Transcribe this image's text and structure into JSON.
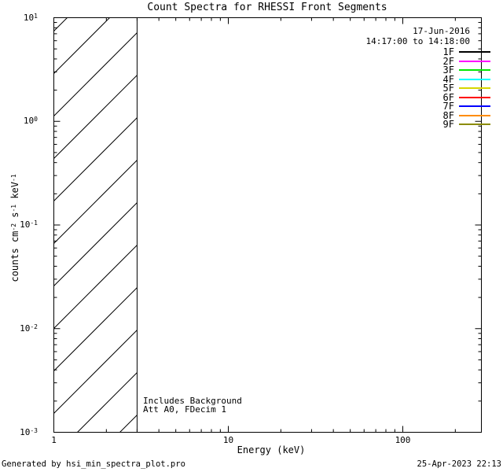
{
  "window": {
    "background": "#FFFFFF",
    "foreground": "#000000"
  },
  "title": "Count Spectra for RHESSI Front Segments",
  "observation": {
    "date": "17-Jun-2016",
    "time_range": "14:17:00 to 14:18:00"
  },
  "axes": {
    "x_label": "Energy (keV)",
    "x_tick_labels": [
      "1",
      "10",
      "100"
    ],
    "x_tick_logs": [
      0,
      1,
      2
    ],
    "y_tick_exponents": [
      1,
      0,
      -1,
      -2,
      -3
    ],
    "y_label_parts": [
      "counts cm",
      "-2",
      " s",
      "-1",
      " keV",
      "-1"
    ]
  },
  "annotations": {
    "line1": "Includes Background",
    "line2": "Att A0, FDecim 1"
  },
  "footer": {
    "generated_by": "Generated by hsi_min_spectra_plot.pro",
    "timestamp": "25-Apr-2023 22:13"
  },
  "chart_data": {
    "type": "line",
    "title": "Count Spectra for RHESSI Front Segments",
    "xlabel": "Energy (keV)",
    "ylabel": "counts cm^-2 s^-1 keV^-1",
    "x_scale": "log",
    "y_scale": "log",
    "xlim": [
      1,
      280
    ],
    "ylim": [
      0.001,
      10
    ],
    "x_major_ticks": [
      1,
      10,
      100
    ],
    "y_major_ticks": [
      10,
      1,
      0.1,
      0.01,
      0.001
    ],
    "minor_ticks": "log-decade subdivisions 2-9",
    "grid": false,
    "legend_position": "top-right",
    "series": [
      {
        "name": "1F",
        "color": "#000000",
        "x": [],
        "y": []
      },
      {
        "name": "2F",
        "color": "#FF00FF",
        "x": [],
        "y": []
      },
      {
        "name": "3F",
        "color": "#00E800",
        "x": [],
        "y": []
      },
      {
        "name": "4F",
        "color": "#00FFFF",
        "x": [],
        "y": []
      },
      {
        "name": "5F",
        "color": "#D6D600",
        "x": [],
        "y": []
      },
      {
        "name": "6F",
        "color": "#FF0000",
        "x": [],
        "y": []
      },
      {
        "name": "7F",
        "color": "#0000FF",
        "x": [],
        "y": []
      },
      {
        "name": "8F",
        "color": "#FF8C00",
        "x": [],
        "y": []
      },
      {
        "name": "9F",
        "color": "#8B8B00",
        "x": [],
        "y": []
      }
    ],
    "hatched_region": {
      "x_range": [
        1,
        3
      ],
      "style": "diagonal-lines"
    }
  }
}
